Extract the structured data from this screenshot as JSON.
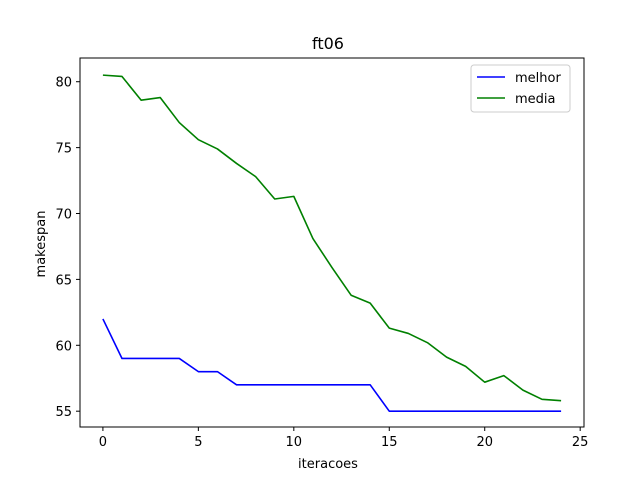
{
  "chart_data": {
    "type": "line",
    "title": "ft06",
    "xlabel": "iteracoes",
    "ylabel": "makespan",
    "xlim": [
      -1.2,
      25.2
    ],
    "ylim": [
      53.8,
      81.8
    ],
    "xticks": [
      0,
      5,
      10,
      15,
      20,
      25
    ],
    "yticks": [
      55,
      60,
      65,
      70,
      75,
      80
    ],
    "grid": false,
    "legend_position": "top-right",
    "x": [
      0,
      1,
      2,
      3,
      4,
      5,
      6,
      7,
      8,
      9,
      10,
      11,
      12,
      13,
      14,
      15,
      16,
      17,
      18,
      19,
      20,
      21,
      22,
      23,
      24
    ],
    "series": [
      {
        "name": "melhor",
        "color": "#0000ff",
        "values": [
          62,
          59,
          59,
          59,
          59,
          58,
          58,
          57,
          57,
          57,
          57,
          57,
          57,
          57,
          57,
          55,
          55,
          55,
          55,
          55,
          55,
          55,
          55,
          55,
          55
        ]
      },
      {
        "name": "media",
        "color": "#008000",
        "values": [
          80.5,
          80.4,
          78.6,
          78.8,
          76.9,
          75.6,
          74.9,
          73.8,
          72.8,
          71.1,
          71.3,
          68.1,
          65.9,
          63.8,
          63.2,
          61.3,
          60.9,
          60.2,
          59.1,
          58.4,
          57.2,
          57.7,
          56.6,
          55.9,
          55.8
        ]
      }
    ]
  }
}
